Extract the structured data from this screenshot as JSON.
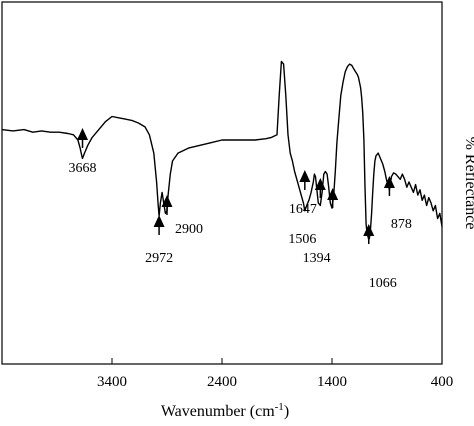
{
  "chart_data": {
    "type": "line",
    "title": "",
    "xlabel": "Wavenumber (cm",
    "xlabel_sup": "-1",
    "xlabel_close": ")",
    "ylabel": "% Reflectance",
    "xlim": [
      4400,
      400
    ],
    "ylim": [
      0,
      100
    ],
    "x_reversed": true,
    "grid": false,
    "xticks": [
      {
        "value": 3400,
        "label": "3400"
      },
      {
        "value": 2400,
        "label": "2400"
      },
      {
        "value": 1400,
        "label": "1400"
      },
      {
        "value": 400,
        "label": "400"
      }
    ],
    "series": [
      {
        "x": [
          4400,
          4300,
          4200,
          4120,
          4040,
          3960,
          3880,
          3800,
          3750,
          3710,
          3690,
          3675,
          3668,
          3650,
          3620,
          3580,
          3520,
          3460,
          3400,
          3340,
          3280,
          3220,
          3160,
          3100,
          3060,
          3020,
          2995,
          2980,
          2972,
          2960,
          2945,
          2930,
          2915,
          2900,
          2890,
          2870,
          2850,
          2800,
          2700,
          2600,
          2500,
          2400,
          2300,
          2200,
          2100,
          2000,
          1950,
          1900,
          1880,
          1860,
          1840,
          1820,
          1800,
          1780,
          1760,
          1740,
          1720,
          1700,
          1680,
          1660,
          1647,
          1630,
          1610,
          1590,
          1570,
          1560,
          1550,
          1540,
          1525,
          1506,
          1490,
          1475,
          1460,
          1445,
          1430,
          1415,
          1400,
          1385,
          1370,
          1355,
          1340,
          1320,
          1300,
          1280,
          1260,
          1240,
          1220,
          1200,
          1185,
          1170,
          1160,
          1150,
          1140,
          1130,
          1120,
          1110,
          1100,
          1090,
          1080,
          1072,
          1066,
          1060,
          1050,
          1040,
          1030,
          1020,
          1010,
          1000,
          980,
          960,
          940,
          920,
          905,
          893,
          885,
          878,
          870,
          860,
          840,
          820,
          800,
          780,
          760,
          740,
          720,
          700,
          680,
          660,
          640,
          620,
          600,
          580,
          560,
          540,
          520,
          500,
          480,
          460,
          440,
          420,
          400
        ],
        "y": [
          62,
          61.5,
          62,
          61,
          61.5,
          61,
          61,
          60.5,
          60,
          58,
          55,
          52,
          51,
          53,
          56,
          59,
          62,
          65,
          67,
          66.5,
          66,
          65.5,
          64.5,
          63,
          60,
          53,
          42,
          33,
          29,
          34,
          38,
          34,
          30,
          31,
          37,
          45,
          50,
          53,
          55,
          56,
          57,
          58,
          58,
          58,
          58,
          58.5,
          59,
          60,
          75,
          88,
          87,
          75,
          60,
          53,
          50,
          46,
          43,
          40,
          37,
          34,
          31,
          33,
          35,
          38,
          42,
          45,
          44,
          40,
          34,
          33,
          38,
          45,
          46,
          45,
          40,
          34,
          32,
          37,
          46,
          57,
          65,
          75,
          80,
          84,
          86,
          87,
          86.5,
          85,
          84,
          83,
          82,
          80,
          78,
          74,
          68,
          58,
          40,
          26,
          22,
          21,
          20,
          20.5,
          24,
          30,
          38,
          45,
          50,
          52,
          53,
          51,
          49,
          46,
          43,
          41,
          40,
          39,
          41,
          44,
          45.5,
          45,
          44,
          43,
          45,
          43,
          40,
          42,
          40,
          38,
          41,
          37,
          39,
          35,
          37,
          33,
          36,
          34,
          31,
          33,
          28,
          30,
          25
        ]
      }
    ],
    "annotations": [
      {
        "label": "3668",
        "x": 3668
      },
      {
        "label": "2972",
        "x": 2972
      },
      {
        "label": "2900",
        "x": 2900
      },
      {
        "label": "1647",
        "x": 1647
      },
      {
        "label": "1506",
        "x": 1506
      },
      {
        "label": "1394",
        "x": 1394
      },
      {
        "label": "1066",
        "x": 1066
      },
      {
        "label": "878",
        "x": 878
      }
    ]
  }
}
